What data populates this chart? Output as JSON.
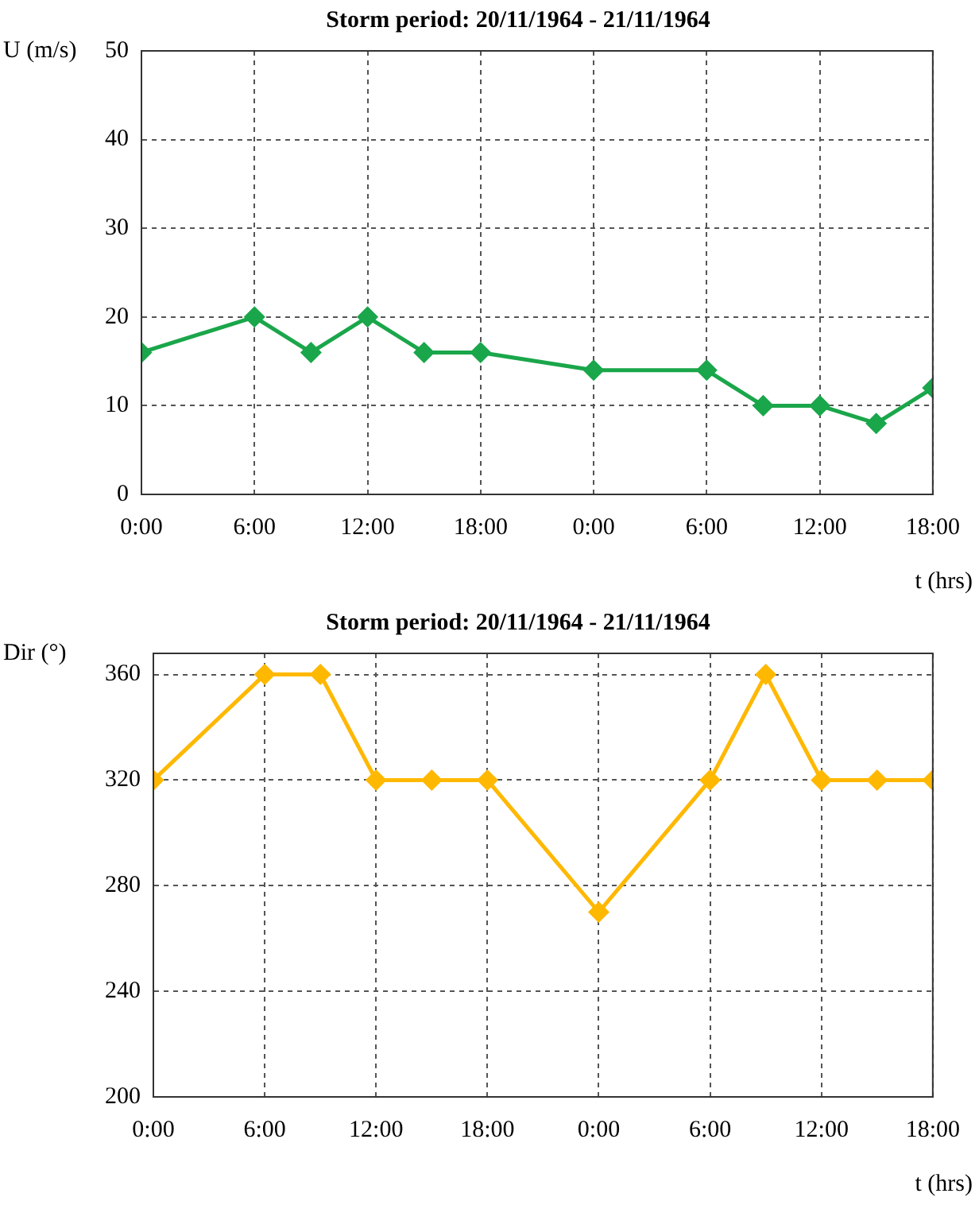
{
  "chart_data": [
    {
      "type": "line",
      "title": "Storm period: 20/11/1964 - 21/11/1964",
      "ylabel": "U (m/s)",
      "xlabel": "t (hrs)",
      "x": [
        "1964-11-20T00:00",
        "1964-11-20T06:00",
        "1964-11-20T09:00",
        "1964-11-20T12:00",
        "1964-11-20T15:00",
        "1964-11-20T18:00",
        "1964-11-21T00:00",
        "1964-11-21T06:00",
        "1964-11-21T09:00",
        "1964-11-21T12:00",
        "1964-11-21T15:00",
        "1964-11-21T18:00"
      ],
      "series": [
        {
          "color": "#1aa64a",
          "values": [
            16,
            20,
            16,
            20,
            16,
            16,
            14,
            14,
            10,
            10,
            8,
            12
          ]
        }
      ],
      "xlim": [
        "1964-11-20T00:00",
        "1964-11-21T18:00"
      ],
      "xticks": [
        {
          "value": "1964-11-20T00:00",
          "label": "0:00"
        },
        {
          "value": "1964-11-20T06:00",
          "label": "6:00"
        },
        {
          "value": "1964-11-20T12:00",
          "label": "12:00"
        },
        {
          "value": "1964-11-20T18:00",
          "label": "18:00"
        },
        {
          "value": "1964-11-21T00:00",
          "label": "0:00"
        },
        {
          "value": "1964-11-21T06:00",
          "label": "6:00"
        },
        {
          "value": "1964-11-21T12:00",
          "label": "12:00"
        },
        {
          "value": "1964-11-21T18:00",
          "label": "18:00"
        }
      ],
      "ylim": [
        0,
        50
      ],
      "yticks": [
        0,
        10,
        20,
        30,
        40,
        50
      ],
      "grid": true,
      "legend": false,
      "marker": "diamond",
      "line_style": "solid"
    },
    {
      "type": "line",
      "title": "Storm period: 20/11/1964 - 21/11/1964",
      "ylabel": "Dir (°)",
      "xlabel": "t (hrs)",
      "x": [
        "1964-11-20T00:00",
        "1964-11-20T06:00",
        "1964-11-20T09:00",
        "1964-11-20T12:00",
        "1964-11-20T15:00",
        "1964-11-20T18:00",
        "1964-11-21T00:00",
        "1964-11-21T06:00",
        "1964-11-21T09:00",
        "1964-11-21T12:00",
        "1964-11-21T15:00",
        "1964-11-21T18:00"
      ],
      "series": [
        {
          "color": "#ffb800",
          "values": [
            320,
            360,
            360,
            320,
            320,
            320,
            270,
            320,
            360,
            320,
            320,
            320
          ]
        }
      ],
      "xlim": [
        "1964-11-20T00:00",
        "1964-11-21T18:00"
      ],
      "xticks": [
        {
          "value": "1964-11-20T00:00",
          "label": "0:00"
        },
        {
          "value": "1964-11-20T06:00",
          "label": "6:00"
        },
        {
          "value": "1964-11-20T12:00",
          "label": "12:00"
        },
        {
          "value": "1964-11-20T18:00",
          "label": "18:00"
        },
        {
          "value": "1964-11-21T00:00",
          "label": "0:00"
        },
        {
          "value": "1964-11-21T06:00",
          "label": "6:00"
        },
        {
          "value": "1964-11-21T12:00",
          "label": "12:00"
        },
        {
          "value": "1964-11-21T18:00",
          "label": "18:00"
        }
      ],
      "ylim": [
        200,
        368
      ],
      "yticks": [
        200,
        240,
        280,
        320,
        360
      ],
      "grid": true,
      "legend": false,
      "marker": "diamond",
      "line_style": "solid"
    }
  ]
}
